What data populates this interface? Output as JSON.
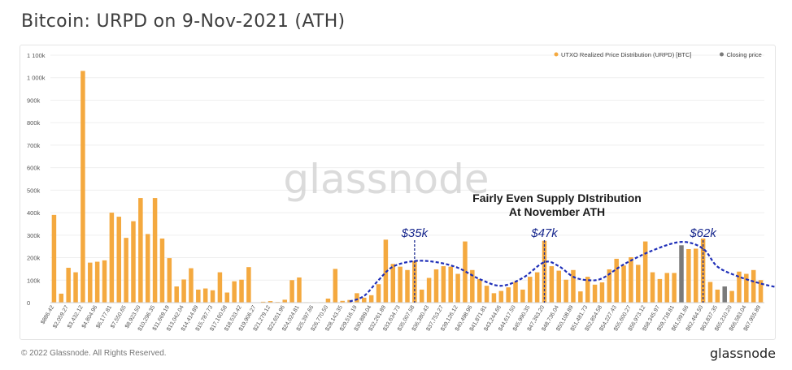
{
  "title": "Bitcoin: URPD on 9-Nov-2021 (ATH)",
  "footer": {
    "copyright": "© 2022 Glassnode. All Rights Reserved.",
    "logo": "glassnode"
  },
  "watermark": "glassnode",
  "colors": {
    "bar": "#f4a93f",
    "closing": "#7a7a7a",
    "curve": "#1f2fb8",
    "marker": "#1a2a8f",
    "annotation": "#1a1a1a"
  },
  "chart_data": {
    "type": "bar",
    "title": "Bitcoin: URPD on 9-Nov-2021 (ATH)",
    "legend": [
      {
        "label": "UTXO Realized Price Distribution (URPD) [BTC]",
        "color": "#f4a93f"
      },
      {
        "label": "Closing price",
        "color": "#7a7a7a"
      }
    ],
    "legend_position": "top-right",
    "ylim": [
      0,
      1100000
    ],
    "yticks": [
      {
        "v": 0,
        "label": "0"
      },
      {
        "v": 100000,
        "label": "100k"
      },
      {
        "v": 200000,
        "label": "200k"
      },
      {
        "v": 300000,
        "label": "300k"
      },
      {
        "v": 400000,
        "label": "400k"
      },
      {
        "v": 500000,
        "label": "500k"
      },
      {
        "v": 600000,
        "label": "600k"
      },
      {
        "v": 700000,
        "label": "700k"
      },
      {
        "v": 800000,
        "label": "800k"
      },
      {
        "v": 900000,
        "label": "900k"
      },
      {
        "v": 1000000,
        "label": "1 000k"
      },
      {
        "v": 1100000,
        "label": "1 100k"
      }
    ],
    "xtick_labels": [
      {
        "i": 0,
        "label": "$886.42"
      },
      {
        "i": 2,
        "label": "$2,059.27"
      },
      {
        "i": 4,
        "label": "$3,432.12"
      },
      {
        "i": 6,
        "label": "$4,804.96"
      },
      {
        "i": 8,
        "label": "$6,177.81"
      },
      {
        "i": 10,
        "label": "$7,550.65"
      },
      {
        "i": 12,
        "label": "$8,923.50"
      },
      {
        "i": 14,
        "label": "$10,296.35"
      },
      {
        "i": 16,
        "label": "$11,669.19"
      },
      {
        "i": 18,
        "label": "$13,042.04"
      },
      {
        "i": 20,
        "label": "$14,414.89"
      },
      {
        "i": 22,
        "label": "$15,787.73"
      },
      {
        "i": 24,
        "label": "$17,160.58"
      },
      {
        "i": 26,
        "label": "$18,533.42"
      },
      {
        "i": 28,
        "label": "$19,906.27"
      },
      {
        "i": 30,
        "label": "$21,279.12"
      },
      {
        "i": 32,
        "label": "$22,651.96"
      },
      {
        "i": 34,
        "label": "$24,024.81"
      },
      {
        "i": 36,
        "label": "$25,397.66"
      },
      {
        "i": 38,
        "label": "$26,770.50"
      },
      {
        "i": 40,
        "label": "$28,143.35"
      },
      {
        "i": 42,
        "label": "$29,516.19"
      },
      {
        "i": 44,
        "label": "$30,889.04"
      },
      {
        "i": 46,
        "label": "$32,261.89"
      },
      {
        "i": 48,
        "label": "$33,634.73"
      },
      {
        "i": 50,
        "label": "$35,007.58"
      },
      {
        "i": 52,
        "label": "$36,380.43"
      },
      {
        "i": 54,
        "label": "$37,753.27"
      },
      {
        "i": 56,
        "label": "$39,126.12"
      },
      {
        "i": 58,
        "label": "$40,498.96"
      },
      {
        "i": 60,
        "label": "$41,871.81"
      },
      {
        "i": 62,
        "label": "$43,244.66"
      },
      {
        "i": 64,
        "label": "$44,617.50"
      },
      {
        "i": 66,
        "label": "$45,990.35"
      },
      {
        "i": 68,
        "label": "$47,363.20"
      },
      {
        "i": 70,
        "label": "$48,736.04"
      },
      {
        "i": 72,
        "label": "$50,108.89"
      },
      {
        "i": 74,
        "label": "$51,481.73"
      },
      {
        "i": 76,
        "label": "$52,854.58"
      },
      {
        "i": 78,
        "label": "$54,227.43"
      },
      {
        "i": 80,
        "label": "$55,600.27"
      },
      {
        "i": 82,
        "label": "$56,973.12"
      },
      {
        "i": 84,
        "label": "$58,345.97"
      },
      {
        "i": 86,
        "label": "$59,718.81"
      },
      {
        "i": 88,
        "label": "$61,091.66"
      },
      {
        "i": 90,
        "label": "$62,464.50"
      },
      {
        "i": 92,
        "label": "$63,837.35"
      },
      {
        "i": 94,
        "label": "$65,210.20"
      },
      {
        "i": 96,
        "label": "$66,583.04"
      },
      {
        "i": 98,
        "label": "$67,955.89"
      }
    ],
    "values": [
      390000,
      40000,
      155000,
      135000,
      1030000,
      178000,
      182000,
      188000,
      400000,
      382000,
      288000,
      362000,
      465000,
      305000,
      465000,
      285000,
      198000,
      72000,
      103000,
      153000,
      58000,
      63000,
      55000,
      135000,
      45000,
      95000,
      102000,
      158000,
      0,
      4000,
      7000,
      3000,
      13000,
      100000,
      112000,
      2000,
      2000,
      2000,
      18000,
      150000,
      8000,
      12000,
      42000,
      22000,
      33000,
      82000,
      280000,
      172000,
      160000,
      145000,
      185000,
      58000,
      110000,
      148000,
      162000,
      160000,
      128000,
      272000,
      145000,
      105000,
      75000,
      42000,
      52000,
      68000,
      92000,
      58000,
      115000,
      135000,
      275000,
      162000,
      142000,
      102000,
      145000,
      50000,
      115000,
      80000,
      90000,
      148000,
      195000,
      165000,
      202000,
      168000,
      272000,
      135000,
      105000,
      132000,
      132000,
      255000,
      238000,
      240000,
      285000,
      92000,
      58000,
      72000,
      52000,
      138000,
      128000,
      145000,
      100000
    ],
    "closing_price_bars": [
      87,
      93
    ],
    "annotations": [
      {
        "text": "Fairly Even Supply DIstribution",
        "line": 1
      },
      {
        "text": "At November ATH",
        "line": 2
      }
    ],
    "price_markers": [
      {
        "label": "$35k",
        "i": 50
      },
      {
        "label": "$47k",
        "i": 68
      },
      {
        "label": "$62k",
        "i": 90
      }
    ],
    "curve": [
      {
        "i": 41,
        "v": 5000
      },
      {
        "i": 43,
        "v": 30000
      },
      {
        "i": 45,
        "v": 100000
      },
      {
        "i": 47,
        "v": 160000
      },
      {
        "i": 50,
        "v": 185000
      },
      {
        "i": 53,
        "v": 180000
      },
      {
        "i": 56,
        "v": 155000
      },
      {
        "i": 59,
        "v": 105000
      },
      {
        "i": 62,
        "v": 75000
      },
      {
        "i": 65,
        "v": 110000
      },
      {
        "i": 68,
        "v": 180000
      },
      {
        "i": 70,
        "v": 162000
      },
      {
        "i": 72,
        "v": 115000
      },
      {
        "i": 74,
        "v": 100000
      },
      {
        "i": 76,
        "v": 108000
      },
      {
        "i": 79,
        "v": 170000
      },
      {
        "i": 83,
        "v": 232000
      },
      {
        "i": 87,
        "v": 270000
      },
      {
        "i": 90,
        "v": 240000
      },
      {
        "i": 92,
        "v": 160000
      },
      {
        "i": 95,
        "v": 115000
      },
      {
        "i": 98,
        "v": 85000
      },
      {
        "i": 100,
        "v": 70000
      }
    ]
  }
}
